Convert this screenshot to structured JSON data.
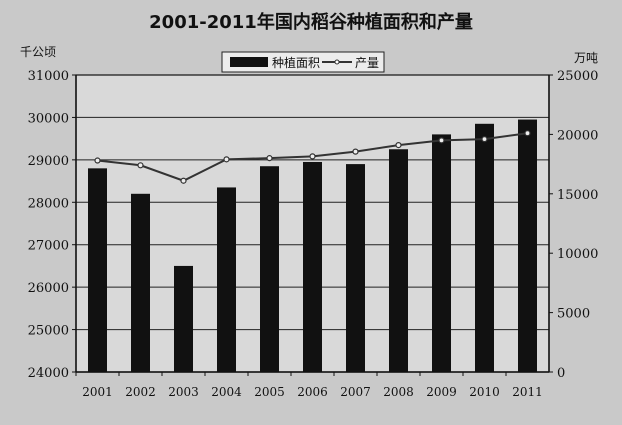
{
  "chart_data": {
    "type": "bar",
    "title": "2001-2011年国内稻谷种植面积和产量",
    "categories": [
      "2001",
      "2002",
      "2003",
      "2004",
      "2005",
      "2006",
      "2007",
      "2008",
      "2009",
      "2010",
      "2011"
    ],
    "series": [
      {
        "name": "种植面积",
        "type": "bar",
        "axis": "left",
        "values": [
          28800,
          28200,
          26500,
          28350,
          28850,
          28950,
          28900,
          29250,
          29600,
          29850,
          29950
        ]
      },
      {
        "name": "产量",
        "type": "line",
        "axis": "right",
        "values": [
          17800,
          17400,
          16100,
          17900,
          18000,
          18150,
          18550,
          19100,
          19500,
          19600,
          20100
        ]
      }
    ],
    "left_axis": {
      "unit": "千公顷",
      "range": [
        24000,
        31000
      ],
      "ticks": [
        "24000",
        "25000",
        "26000",
        "27000",
        "28000",
        "29000",
        "30000",
        "31000"
      ]
    },
    "right_axis": {
      "unit": "万吨",
      "range": [
        0,
        25000
      ],
      "ticks": [
        "0",
        "5000",
        "10000",
        "15000",
        "20000",
        "25000"
      ]
    },
    "legend_position": "top-center",
    "grid": true
  }
}
